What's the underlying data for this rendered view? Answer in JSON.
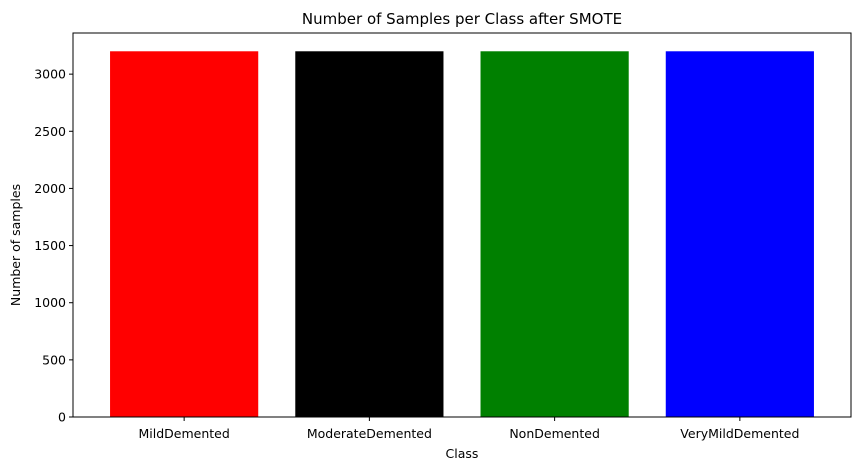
{
  "chart_data": {
    "type": "bar",
    "title": "Number of Samples per Class after SMOTE",
    "xlabel": "Class",
    "ylabel": "Number of samples",
    "categories": [
      "MildDemented",
      "ModerateDemented",
      "NonDemented",
      "VeryMildDemented"
    ],
    "values": [
      3200,
      3200,
      3200,
      3200
    ],
    "colors": [
      "#ff0000",
      "#000000",
      "#008000",
      "#0000ff"
    ],
    "ylim": [
      0,
      3360
    ],
    "yticks": [
      0,
      500,
      1000,
      1500,
      2000,
      2500,
      3000
    ],
    "grid": false,
    "legend": "none"
  }
}
